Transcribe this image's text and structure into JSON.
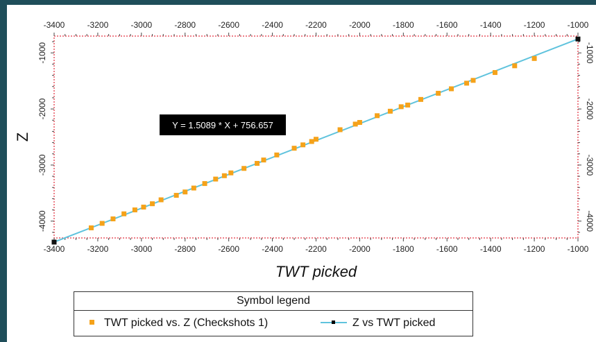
{
  "chart_data": {
    "type": "scatter",
    "xlabel": "TWT picked",
    "ylabel": "Z",
    "xlim": [
      -3400,
      -1000
    ],
    "ylim": [
      -4300,
      -700
    ],
    "x_ticks": [
      -3400,
      -3200,
      -3000,
      -2800,
      -2600,
      -2400,
      -2200,
      -2000,
      -1800,
      -1600,
      -1400,
      -1200,
      -1000
    ],
    "x_tick_labels": [
      "-3400",
      "-3200",
      "-3000",
      "-2800",
      "-2600",
      "-2400",
      "-2200",
      "-2000",
      "-1800",
      "-1600",
      "-1400",
      "-1200",
      "-1000"
    ],
    "y_ticks": [
      -1000,
      -2000,
      -3000,
      -4000
    ],
    "y_tick_labels": [
      "-1000",
      "-2000",
      "-3000",
      "-4000"
    ],
    "grid": false,
    "annotation": "Y = 1.5089 * X + 756.657",
    "legend_title": "Symbol legend",
    "legend_position": "bottom",
    "series": [
      {
        "name": "TWT picked vs. Z (Checkshots 1)",
        "marker": "square",
        "color": "#f5a21a",
        "x": [
          -3230,
          -3180,
          -3130,
          -3080,
          -3030,
          -2990,
          -2950,
          -2910,
          -2840,
          -2800,
          -2760,
          -2710,
          -2660,
          -2620,
          -2590,
          -2530,
          -2470,
          -2440,
          -2380,
          -2300,
          -2260,
          -2220,
          -2200,
          -2090,
          -2020,
          -2000,
          -1920,
          -1860,
          -1810,
          -1780,
          -1720,
          -1640,
          -1580,
          -1510,
          -1480,
          -1380,
          -1290,
          -1200
        ],
        "y": [
          -4120,
          -4040,
          -3960,
          -3870,
          -3800,
          -3750,
          -3690,
          -3620,
          -3540,
          -3480,
          -3410,
          -3330,
          -3250,
          -3190,
          -3140,
          -3060,
          -2970,
          -2910,
          -2820,
          -2700,
          -2640,
          -2580,
          -2540,
          -2370,
          -2270,
          -2240,
          -2120,
          -2040,
          -1960,
          -1930,
          -1830,
          -1720,
          -1640,
          -1540,
          -1490,
          -1350,
          -1230,
          -1100
        ]
      },
      {
        "name": "Z vs TWT picked",
        "marker": "line",
        "color": "#5fc3dd",
        "x": [
          -3400,
          -1000
        ],
        "y": [
          -4374,
          -752
        ]
      }
    ]
  }
}
